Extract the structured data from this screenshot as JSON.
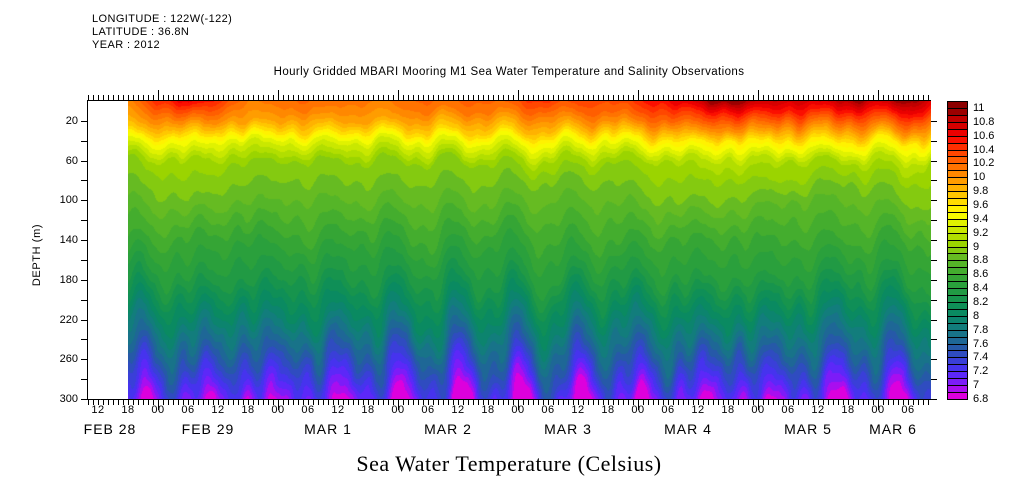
{
  "header": {
    "longitude": "LONGITUDE : 122W(-122)",
    "latitude": "LATITUDE : 36.8N",
    "year": "YEAR : 2012"
  },
  "title": "Hourly Gridded MBARI Mooring M1 Sea Water Temperature and Salinity Observations",
  "caption": "Sea Water Temperature (Celsius)",
  "y_axis": {
    "label": "DEPTH (m)",
    "labeled_ticks": [
      20,
      60,
      100,
      140,
      180,
      220,
      260,
      300
    ],
    "minor_step_m": 20,
    "depth_range_m": [
      0,
      300
    ]
  },
  "x_axis": {
    "hour_tick_labels": [
      "12",
      "18",
      "00",
      "06",
      "12",
      "18",
      "00",
      "06",
      "12",
      "18",
      "00",
      "06",
      "12",
      "18",
      "00",
      "06",
      "12",
      "18",
      "00",
      "06",
      "12",
      "18",
      "00",
      "06",
      "12",
      "18",
      "00",
      "06"
    ],
    "date_labels": [
      "FEB 28",
      "FEB 29",
      "MAR 1",
      "MAR 2",
      "MAR 3",
      "MAR 4",
      "MAR 5",
      "MAR 6"
    ]
  },
  "colorbar": {
    "tick_labels": [
      "11",
      "10.8",
      "10.6",
      "10.4",
      "10.2",
      "10",
      "9.8",
      "9.6",
      "9.4",
      "9.2",
      "9",
      "8.8",
      "8.6",
      "8.4",
      "8.2",
      "8",
      "7.8",
      "7.6",
      "7.4",
      "7.2",
      "7",
      "6.8"
    ],
    "value_min": 6.8,
    "value_max": 11.1,
    "cell_step": 0.1
  },
  "chart_data": {
    "type": "heatmap",
    "title": "Hourly Gridded MBARI Mooring M1 Sea Water Temperature and Salinity Observations",
    "ylabel": "DEPTH (m)",
    "units": "Celsius",
    "y_range_m": [
      0,
      300
    ],
    "value_range_c": [
      6.8,
      11.1
    ],
    "time_hours_since_start": [
      0,
      12,
      24,
      36,
      48,
      60,
      72,
      84,
      96,
      108,
      120,
      132,
      144,
      156,
      160
    ],
    "time_labels": [
      "FEB 28 18:00",
      "FEB 29 06:00",
      "FEB 29 18:00",
      "MAR 1 06:00",
      "MAR 1 18:00",
      "MAR 2 06:00",
      "MAR 2 18:00",
      "MAR 3 06:00",
      "MAR 3 18:00",
      "MAR 4 06:00",
      "MAR 4 18:00",
      "MAR 5 06:00",
      "MAR 5 18:00",
      "MAR 6 06:00",
      "MAR 6 10:00"
    ],
    "depths_m": [
      0,
      10,
      20,
      30,
      40,
      60,
      80,
      100,
      140,
      180,
      220,
      260,
      300
    ],
    "temperature_c": [
      [
        10.1,
        10.7,
        10.1,
        10.2,
        10.1,
        10.2,
        10.2,
        10.4,
        10.3,
        10.6,
        11.0,
        10.7,
        10.8,
        10.9,
        10.7
      ],
      [
        10.0,
        10.4,
        10.0,
        10.1,
        10.0,
        10.1,
        10.1,
        10.2,
        10.2,
        10.4,
        10.6,
        10.5,
        10.5,
        10.6,
        10.5
      ],
      [
        9.9,
        10.1,
        9.9,
        9.9,
        9.9,
        9.9,
        9.9,
        10.0,
        10.0,
        10.2,
        10.3,
        10.2,
        10.2,
        10.3,
        10.2
      ],
      [
        9.7,
        9.8,
        9.6,
        9.7,
        9.6,
        9.7,
        9.7,
        9.8,
        9.7,
        9.9,
        10.0,
        9.9,
        9.9,
        10.0,
        9.9
      ],
      [
        9.4,
        9.5,
        9.3,
        9.4,
        9.3,
        9.4,
        9.4,
        9.5,
        9.4,
        9.6,
        9.6,
        9.6,
        9.6,
        9.6,
        9.6
      ],
      [
        9.0,
        9.1,
        9.0,
        9.0,
        9.0,
        9.0,
        9.0,
        9.1,
        9.0,
        9.1,
        9.2,
        9.1,
        9.1,
        9.2,
        9.1
      ],
      [
        8.9,
        9.0,
        8.9,
        8.9,
        8.9,
        8.9,
        8.9,
        8.9,
        8.9,
        9.0,
        9.0,
        9.0,
        8.9,
        9.0,
        9.0
      ],
      [
        8.8,
        8.9,
        8.8,
        8.8,
        8.8,
        8.8,
        8.8,
        8.8,
        8.8,
        8.9,
        8.9,
        8.8,
        8.8,
        8.9,
        8.9
      ],
      [
        8.6,
        8.6,
        8.5,
        8.6,
        8.5,
        8.6,
        8.5,
        8.6,
        8.6,
        8.6,
        8.6,
        8.6,
        8.6,
        8.6,
        8.6
      ],
      [
        8.3,
        8.4,
        8.3,
        8.3,
        8.3,
        8.3,
        8.3,
        8.4,
        8.3,
        8.4,
        8.4,
        8.4,
        8.3,
        8.4,
        8.4
      ],
      [
        7.9,
        8.0,
        7.9,
        8.0,
        7.9,
        8.0,
        7.9,
        8.0,
        7.9,
        8.0,
        8.0,
        8.0,
        7.9,
        8.0,
        8.0
      ],
      [
        7.5,
        7.6,
        7.5,
        7.5,
        7.5,
        7.5,
        7.5,
        7.6,
        7.5,
        7.6,
        7.5,
        7.6,
        7.5,
        7.6,
        7.6
      ],
      [
        7.1,
        7.1,
        7.0,
        7.1,
        7.0,
        7.1,
        7.0,
        7.1,
        7.0,
        7.1,
        7.0,
        7.1,
        7.0,
        7.1,
        7.1
      ]
    ],
    "palette_c_0p1_steps": [
      "#dd00dd",
      "#a90eef",
      "#7c1cf8",
      "#5c28f8",
      "#4633ee",
      "#3a3fd8",
      "#2f4cc0",
      "#2659a8",
      "#1e6796",
      "#187389",
      "#127d7c",
      "#0c846e",
      "#0a8a61",
      "#0f8f57",
      "#17944d",
      "#219a44",
      "#2aa03c",
      "#35a535",
      "#44ad2e",
      "#55b528",
      "#66bb22",
      "#84ca10",
      "#9bd400",
      "#b2de00",
      "#c9e800",
      "#e0f200",
      "#f7fb00",
      "#fff200",
      "#ffdc00",
      "#ffc700",
      "#ffb200",
      "#ff9d00",
      "#ff8800",
      "#ff7300",
      "#ff5e00",
      "#ff4700",
      "#ff2e00",
      "#fb0f00",
      "#ea0000",
      "#d60000",
      "#c00000",
      "#9b0000",
      "#8b0000"
    ]
  }
}
